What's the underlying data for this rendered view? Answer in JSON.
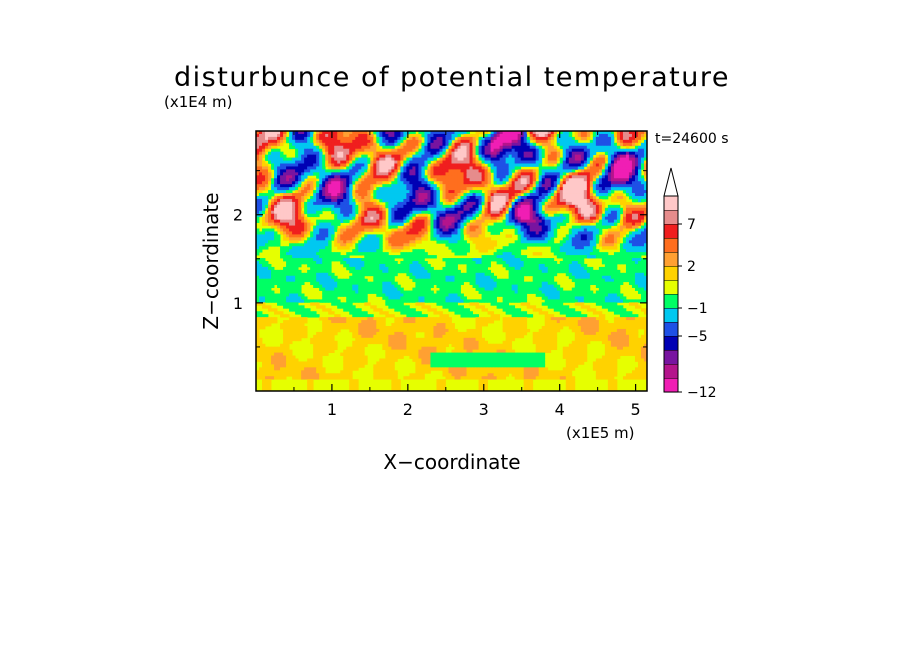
{
  "chart_data": {
    "type": "heatmap",
    "title": "disturbunce of potential temperature",
    "time_label": "t=24600 s",
    "xlabel": "X−coordinate",
    "ylabel": "Z−coordinate",
    "x_unit": "(x1E5 m)",
    "y_unit": "(x1E4 m)",
    "xlim": [
      0,
      5.15
    ],
    "ylim": [
      0,
      2.95
    ],
    "x_ticks": [
      {
        "value": 1,
        "label": "1"
      },
      {
        "value": 2,
        "label": "2"
      },
      {
        "value": 3,
        "label": "3"
      },
      {
        "value": 4,
        "label": "4"
      },
      {
        "value": 5,
        "label": "5"
      }
    ],
    "y_ticks": [
      {
        "value": 1,
        "label": "1"
      },
      {
        "value": 2,
        "label": "2"
      }
    ],
    "colorbar": {
      "levels": [
        -12,
        -11,
        -9,
        -7,
        -5,
        -3,
        -1,
        0,
        1,
        2,
        3,
        5,
        7,
        9,
        11
      ],
      "tick_labels": [
        {
          "value": 7,
          "label": "7"
        },
        {
          "value": 2,
          "label": "2"
        },
        {
          "value": -1,
          "label": "−1"
        },
        {
          "value": -5,
          "label": "−5"
        },
        {
          "value": -12,
          "label": "−12"
        }
      ],
      "colors": [
        "#f01eb4",
        "#b4148c",
        "#7814a0",
        "#0000b4",
        "#1e50e6",
        "#00c8f0",
        "#00ff64",
        "#e6ff00",
        "#ffd200",
        "#ffa032",
        "#ff6e1e",
        "#f01e1e",
        "#e68c8c",
        "#ffc8c8"
      ],
      "extend": "max"
    },
    "field_summary": [
      {
        "z_range": [
          0,
          1.0
        ],
        "typical_value": 1.5,
        "description": "weak warm disturbance with a cool band near z=0.35"
      },
      {
        "z_range": [
          1.0,
          1.5
        ],
        "typical_value": -0.5,
        "description": "near-neutral layer"
      },
      {
        "z_range": [
          1.5,
          2.95
        ],
        "typical_value": 0,
        "description": "gravity-wave pattern alternating between about -9 and +7"
      }
    ]
  }
}
